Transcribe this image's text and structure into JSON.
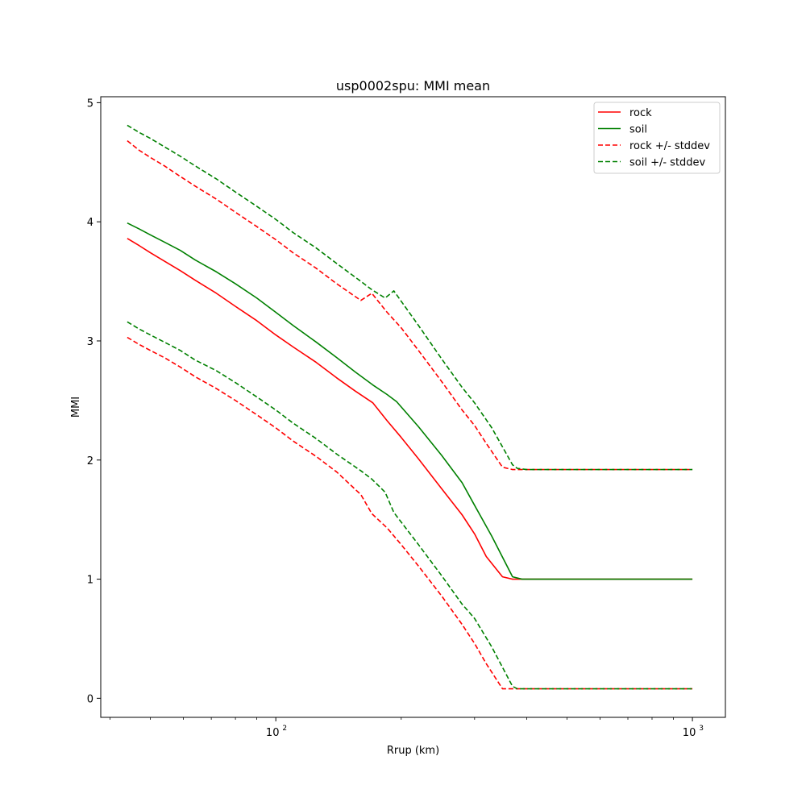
{
  "chart_data": {
    "type": "line",
    "title": "usp0002spu: MMI mean",
    "xlabel": "Rrup (km)",
    "ylabel": "MMI",
    "xscale": "log",
    "xlim": [
      38,
      1200
    ],
    "ylim": [
      -0.16,
      5.05
    ],
    "x_ticks": [
      {
        "value": 100,
        "base": "10",
        "exp": "2"
      },
      {
        "value": 1000,
        "base": "10",
        "exp": "3"
      }
    ],
    "y_ticks": [
      "0",
      "1",
      "2",
      "3",
      "4",
      "5"
    ],
    "grid": false,
    "legend_position": "top-right",
    "series": [
      {
        "name": "rock",
        "color": "#ff0000",
        "dash": "solid",
        "x": [
          44,
          47,
          50,
          54,
          59,
          64,
          72,
          80,
          90,
          100,
          110,
          125,
          140,
          155,
          171,
          185,
          200,
          220,
          250,
          280,
          300,
          320,
          350,
          370,
          400,
          500,
          700,
          1000
        ],
        "y": [
          3.86,
          3.8,
          3.74,
          3.67,
          3.59,
          3.51,
          3.4,
          3.29,
          3.17,
          3.05,
          2.95,
          2.82,
          2.69,
          2.58,
          2.48,
          2.33,
          2.19,
          2.01,
          1.76,
          1.54,
          1.38,
          1.19,
          1.02,
          1.0,
          1.0,
          1.0,
          1.0,
          1.0
        ]
      },
      {
        "name": "soil",
        "color": "#008000",
        "dash": "solid",
        "x": [
          44,
          47,
          50,
          54,
          59,
          64,
          72,
          80,
          90,
          100,
          110,
          125,
          140,
          155,
          171,
          185,
          195,
          220,
          250,
          280,
          300,
          330,
          370,
          390,
          400,
          500,
          700,
          1000
        ],
        "y": [
          3.99,
          3.94,
          3.89,
          3.83,
          3.76,
          3.68,
          3.58,
          3.48,
          3.36,
          3.24,
          3.13,
          2.99,
          2.86,
          2.74,
          2.63,
          2.55,
          2.49,
          2.28,
          2.04,
          1.81,
          1.62,
          1.36,
          1.02,
          1.0,
          1.0,
          1.0,
          1.0,
          1.0
        ]
      },
      {
        "name": "rock +/- stddev",
        "color": "#ff0000",
        "dash": "dashed",
        "x": [
          44,
          47,
          50,
          54,
          59,
          64,
          72,
          80,
          90,
          100,
          110,
          125,
          140,
          160,
          170,
          185,
          200,
          220,
          250,
          280,
          300,
          320,
          350,
          370,
          400,
          500,
          700,
          1000
        ],
        "y": [
          4.68,
          4.6,
          4.54,
          4.47,
          4.38,
          4.3,
          4.19,
          4.08,
          3.96,
          3.85,
          3.74,
          3.61,
          3.48,
          3.34,
          3.4,
          3.24,
          3.11,
          2.92,
          2.66,
          2.42,
          2.29,
          2.14,
          1.94,
          1.92,
          1.92,
          1.92,
          1.92,
          1.92
        ]
      },
      {
        "name": "rock +/- stddev",
        "color": "#ff0000",
        "dash": "dashed",
        "x": [
          44,
          47,
          50,
          54,
          59,
          64,
          72,
          80,
          90,
          100,
          110,
          125,
          140,
          160,
          170,
          185,
          200,
          220,
          250,
          280,
          300,
          320,
          350,
          370,
          400,
          500,
          700,
          1000
        ],
        "y": [
          3.03,
          2.97,
          2.92,
          2.86,
          2.78,
          2.7,
          2.6,
          2.5,
          2.38,
          2.27,
          2.16,
          2.03,
          1.9,
          1.71,
          1.55,
          1.43,
          1.29,
          1.11,
          0.86,
          0.62,
          0.46,
          0.29,
          0.08,
          0.08,
          0.08,
          0.08,
          0.08,
          0.08
        ]
      },
      {
        "name": "soil +/- stddev",
        "color": "#008000",
        "dash": "dashed",
        "x": [
          44,
          47,
          50,
          54,
          59,
          64,
          72,
          80,
          90,
          100,
          110,
          125,
          140,
          160,
          170,
          183,
          192,
          220,
          250,
          280,
          300,
          330,
          370,
          380,
          400,
          500,
          700,
          1000
        ],
        "y": [
          4.81,
          4.75,
          4.7,
          4.63,
          4.55,
          4.47,
          4.36,
          4.25,
          4.13,
          4.02,
          3.91,
          3.78,
          3.65,
          3.5,
          3.43,
          3.36,
          3.42,
          3.13,
          2.85,
          2.61,
          2.48,
          2.27,
          1.96,
          1.93,
          1.92,
          1.92,
          1.92,
          1.92
        ]
      },
      {
        "name": "soil +/- stddev",
        "color": "#008000",
        "dash": "dashed",
        "x": [
          44,
          47,
          50,
          54,
          59,
          64,
          72,
          80,
          90,
          100,
          110,
          125,
          140,
          160,
          170,
          183,
          192,
          220,
          250,
          280,
          300,
          330,
          370,
          380,
          400,
          500,
          700,
          1000
        ],
        "y": [
          3.16,
          3.1,
          3.05,
          2.99,
          2.92,
          2.84,
          2.75,
          2.65,
          2.53,
          2.42,
          2.31,
          2.18,
          2.05,
          1.91,
          1.84,
          1.73,
          1.56,
          1.29,
          1.03,
          0.79,
          0.67,
          0.43,
          0.1,
          0.08,
          0.08,
          0.08,
          0.08,
          0.08
        ]
      }
    ],
    "legend": [
      {
        "label": "rock",
        "color": "#ff0000",
        "dash": "solid"
      },
      {
        "label": "soil",
        "color": "#008000",
        "dash": "solid"
      },
      {
        "label": "rock +/- stddev",
        "color": "#ff0000",
        "dash": "dashed"
      },
      {
        "label": "soil +/- stddev",
        "color": "#008000",
        "dash": "dashed"
      }
    ]
  }
}
